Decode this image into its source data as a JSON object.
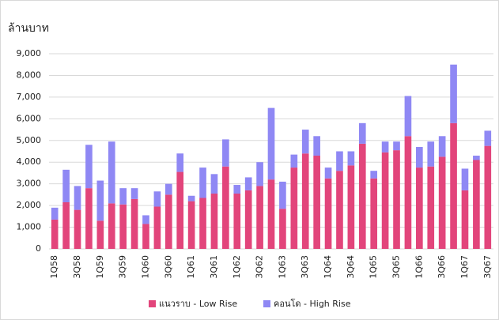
{
  "chart_data": {
    "type": "stacked_bar",
    "y_label": "ล้านบาท",
    "categories": [
      "1Q58",
      null,
      "3Q58",
      null,
      "1Q59",
      null,
      "3Q59",
      null,
      "1Q60",
      null,
      "3Q60",
      null,
      "1Q61",
      null,
      "3Q61",
      null,
      "1Q62",
      null,
      "3Q62",
      null,
      "1Q63",
      null,
      "3Q63",
      null,
      "1Q64",
      null,
      "3Q64",
      null,
      "1Q65",
      null,
      "3Q65",
      null,
      "1Q66",
      null,
      "3Q66",
      null,
      "1Q67",
      null,
      "3Q67"
    ],
    "series": [
      {
        "name": "แนวราบ - Low Rise",
        "color": "#e2457b",
        "values": [
          1350,
          2150,
          1800,
          2800,
          1300,
          2100,
          2050,
          2300,
          1150,
          1950,
          2500,
          3550,
          2200,
          2350,
          2550,
          3800,
          2550,
          2700,
          2900,
          3200,
          1850,
          3750,
          4400,
          4300,
          3250,
          3600,
          3850,
          4850,
          3250,
          4450,
          4550,
          5200,
          3750,
          3800,
          4250,
          5800,
          2700,
          4100,
          4750
        ]
      },
      {
        "name": "คอนโด - High Rise",
        "color": "#8f88f4",
        "values": [
          550,
          1500,
          1100,
          2000,
          1850,
          2850,
          750,
          500,
          400,
          700,
          500,
          850,
          250,
          1400,
          900,
          1250,
          400,
          600,
          1100,
          3300,
          1250,
          600,
          1100,
          900,
          500,
          900,
          650,
          950,
          350,
          500,
          400,
          1850,
          950,
          1150,
          950,
          2700,
          1000,
          200,
          700
        ]
      }
    ],
    "ylim": [
      0,
      9000
    ],
    "yticks": [
      0,
      {
        "value": 1000,
        "label": "1,000"
      },
      {
        "value": 2000,
        "label": "2,000"
      },
      {
        "value": 3000,
        "label": "3,000"
      },
      {
        "value": 4000,
        "label": "4,000"
      },
      {
        "value": 5000,
        "label": "5,000"
      },
      {
        "value": 6000,
        "label": "6,000"
      },
      {
        "value": 7000,
        "label": "7,000"
      },
      {
        "value": 8000,
        "label": "8,000"
      },
      {
        "value": 9000,
        "label": "9,000"
      }
    ],
    "grid": true
  }
}
